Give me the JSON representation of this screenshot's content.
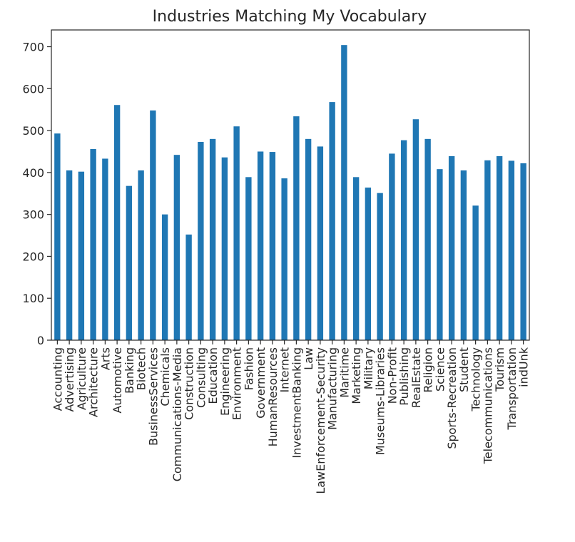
{
  "chart_data": {
    "type": "bar",
    "title": "Industries Matching My Vocabulary",
    "xlabel": "",
    "ylabel": "",
    "ylim": [
      0,
      740
    ],
    "yticks": [
      0,
      100,
      200,
      300,
      400,
      500,
      600,
      700
    ],
    "grid": false,
    "legend": "none",
    "bar_color": "#1f77b4",
    "categories": [
      "Accounting",
      "Advertising",
      "Agriculture",
      "Architecture",
      "Arts",
      "Automotive",
      "Banking",
      "Biotech",
      "BusinessServices",
      "Chemicals",
      "Communications-Media",
      "Construction",
      "Consulting",
      "Education",
      "Engineering",
      "Environment",
      "Fashion",
      "Government",
      "HumanResources",
      "Internet",
      "InvestmentBanking",
      "Law",
      "LawEnforcement-Security",
      "Manufacturing",
      "Maritime",
      "Marketing",
      "Military",
      "Museums-Libraries",
      "Non-Profit",
      "Publishing",
      "RealEstate",
      "Religion",
      "Science",
      "Sports-Recreation",
      "Student",
      "Technology",
      "Telecommunications",
      "Tourism",
      "Transportation",
      "indUnk"
    ],
    "values": [
      493,
      405,
      402,
      456,
      433,
      561,
      368,
      405,
      548,
      300,
      442,
      252,
      473,
      480,
      436,
      510,
      389,
      450,
      449,
      386,
      534,
      480,
      462,
      568,
      704,
      389,
      364,
      351,
      445,
      477,
      527,
      480,
      408,
      439,
      405,
      321,
      429,
      439,
      428,
      422
    ]
  }
}
